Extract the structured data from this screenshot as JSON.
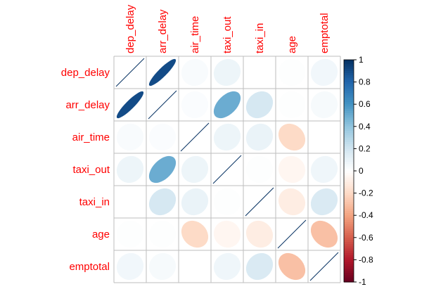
{
  "chart_data": {
    "type": "heatmap",
    "method": "ellipse",
    "variables": [
      "dep_delay",
      "arr_delay",
      "air_time",
      "taxi_out",
      "taxi_in",
      "age",
      "emptotal"
    ],
    "matrix": [
      [
        1.0,
        0.9,
        0.03,
        0.08,
        0.0,
        0.01,
        0.06
      ],
      [
        0.9,
        1.0,
        0.02,
        0.5,
        0.18,
        0.01,
        0.04
      ],
      [
        0.03,
        0.02,
        1.0,
        0.08,
        0.09,
        -0.2,
        0.0
      ],
      [
        0.08,
        0.5,
        0.08,
        1.0,
        0.01,
        -0.05,
        0.07
      ],
      [
        0.0,
        0.18,
        0.09,
        0.01,
        1.0,
        -0.1,
        0.16
      ],
      [
        0.01,
        0.01,
        -0.2,
        -0.05,
        -0.1,
        1.0,
        -0.3
      ],
      [
        0.06,
        0.04,
        0.0,
        0.07,
        0.16,
        -0.3,
        1.0
      ]
    ],
    "colorbar": {
      "ticks": [
        "1",
        "0.8",
        "0.6",
        "0.4",
        "0.2",
        "0",
        "-0.2",
        "-0.4",
        "-0.6",
        "-0.8",
        "-1"
      ],
      "range": [
        -1,
        1
      ]
    },
    "colors": {
      "label": "#ff0000",
      "grid": "#bebebe",
      "diagonal_line": "#053061",
      "low": "#67001f",
      "mid": "#ffffff",
      "high": "#053061"
    }
  }
}
